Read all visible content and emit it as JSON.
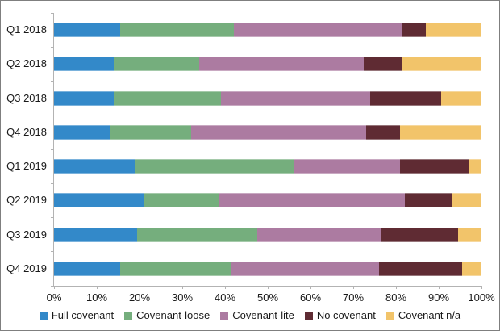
{
  "chart_data": {
    "type": "bar",
    "orientation": "horizontal",
    "stacked": true,
    "value_unit": "%",
    "title": "",
    "xlabel": "",
    "ylabel": "",
    "grid": false,
    "legend_position": "bottom",
    "categories": [
      "Q1 2018",
      "Q2 2018",
      "Q3 2018",
      "Q4 2018",
      "Q1 2019",
      "Q2 2019",
      "Q3 2019",
      "Q4 2019"
    ],
    "series": [
      {
        "name": "Full covenant",
        "color": "#3389C9",
        "values": [
          15.5,
          14.0,
          14.0,
          13.0,
          19.0,
          21.0,
          19.5,
          15.5
        ]
      },
      {
        "name": "Covenant-loose",
        "color": "#75AE7D",
        "values": [
          26.5,
          20.0,
          25.0,
          19.0,
          37.0,
          17.5,
          28.0,
          26.0
        ]
      },
      {
        "name": "Covenant-lite",
        "color": "#AC7BA1",
        "values": [
          39.5,
          38.5,
          35.0,
          41.0,
          25.0,
          43.5,
          29.0,
          34.5
        ]
      },
      {
        "name": "No covenant",
        "color": "#5F2B33",
        "values": [
          5.5,
          9.0,
          16.5,
          8.0,
          16.0,
          11.0,
          18.0,
          19.5
        ]
      },
      {
        "name": "Covenant n/a",
        "color": "#F2C46A",
        "values": [
          13.0,
          18.5,
          9.5,
          19.0,
          3.0,
          7.0,
          5.5,
          4.5
        ]
      }
    ],
    "x_axis": {
      "min": 0,
      "max": 100,
      "tick_step": 10,
      "tick_labels": [
        "0%",
        "10%",
        "20%",
        "30%",
        "40%",
        "50%",
        "60%",
        "70%",
        "80%",
        "90%",
        "100%"
      ]
    }
  },
  "style": {
    "axis_color": "#B3B3B3",
    "border_color": "#7F7F7F",
    "text_color": "#1A1A1A",
    "background": "#FFFFFF"
  }
}
